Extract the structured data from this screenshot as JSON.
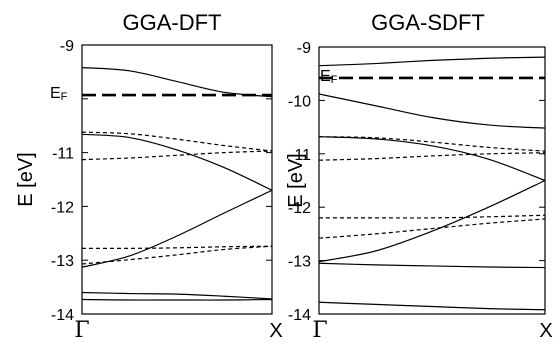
{
  "chart_data": [
    {
      "type": "line",
      "title": "GGA-DFT",
      "ylabel": "E [eV]",
      "ylim": [
        -14,
        -9
      ],
      "yticks": [
        "-9",
        "-10",
        "-11",
        "-12",
        "-13",
        "-14"
      ],
      "x_labels": [
        "Γ",
        "X"
      ],
      "fermi_label": {
        "main": "E",
        "sub": "F"
      },
      "fermi_level": -9.93,
      "grid": false,
      "series": [
        {
          "style": "solid",
          "x": [
            0,
            0.25,
            0.5,
            0.75,
            1
          ],
          "y": [
            -9.42,
            -9.48,
            -9.68,
            -9.88,
            -9.96
          ]
        },
        {
          "style": "solid",
          "x": [
            0,
            0.25,
            0.5,
            0.75,
            1
          ],
          "y": [
            -10.66,
            -10.72,
            -10.95,
            -11.28,
            -11.7
          ]
        },
        {
          "style": "solid",
          "x": [
            0,
            0.25,
            0.5,
            0.75,
            1
          ],
          "y": [
            -13.13,
            -12.92,
            -12.55,
            -12.12,
            -11.7
          ]
        },
        {
          "style": "solid",
          "x": [
            0,
            0.25,
            0.5,
            0.75,
            1
          ],
          "y": [
            -13.6,
            -13.62,
            -13.63,
            -13.67,
            -13.72
          ]
        },
        {
          "style": "solid",
          "x": [
            0,
            0.25,
            0.5,
            0.75,
            1
          ],
          "y": [
            -13.73,
            -13.74,
            -13.74,
            -13.74,
            -13.73
          ]
        },
        {
          "style": "dashed",
          "x": [
            0,
            0.25,
            0.5,
            0.75,
            1
          ],
          "y": [
            -10.62,
            -10.65,
            -10.75,
            -10.87,
            -10.97
          ]
        },
        {
          "style": "dashed",
          "x": [
            0,
            0.25,
            0.5,
            0.75,
            1
          ],
          "y": [
            -11.13,
            -11.1,
            -11.05,
            -11.0,
            -10.97
          ]
        },
        {
          "style": "dashed",
          "x": [
            0,
            0.25,
            0.5,
            0.75,
            1
          ],
          "y": [
            -12.78,
            -12.78,
            -12.77,
            -12.75,
            -12.74
          ]
        },
        {
          "style": "dashed",
          "x": [
            0,
            0.25,
            0.5,
            0.75,
            1
          ],
          "y": [
            -13.07,
            -12.99,
            -12.9,
            -12.8,
            -12.74
          ]
        }
      ]
    },
    {
      "type": "line",
      "title": "GGA-SDFT",
      "ylabel": "E [eV]",
      "ylim": [
        -14,
        -9
      ],
      "yticks": [
        "-9",
        "-10",
        "-11",
        "-12",
        "-13",
        "-14"
      ],
      "x_labels": [
        "Γ",
        "X"
      ],
      "fermi_label": {
        "main": "E",
        "sub": "F"
      },
      "fermi_level": -9.58,
      "grid": false,
      "series": [
        {
          "style": "solid",
          "x": [
            0,
            0.25,
            0.5,
            0.75,
            1
          ],
          "y": [
            -9.35,
            -9.31,
            -9.25,
            -9.21,
            -9.19
          ]
        },
        {
          "style": "solid",
          "x": [
            0,
            0.25,
            0.5,
            0.75,
            1
          ],
          "y": [
            -9.88,
            -10.1,
            -10.32,
            -10.46,
            -10.52
          ]
        },
        {
          "style": "solid",
          "x": [
            0,
            0.25,
            0.5,
            0.75,
            1
          ],
          "y": [
            -10.68,
            -10.72,
            -10.85,
            -11.1,
            -11.5
          ]
        },
        {
          "style": "solid",
          "x": [
            0,
            0.25,
            0.5,
            0.75,
            1
          ],
          "y": [
            -13.02,
            -12.82,
            -12.45,
            -12.0,
            -11.5
          ]
        },
        {
          "style": "solid",
          "x": [
            0,
            0.25,
            0.5,
            0.75,
            1
          ],
          "y": [
            -13.05,
            -13.08,
            -13.1,
            -13.12,
            -13.13
          ]
        },
        {
          "style": "solid",
          "x": [
            0,
            0.25,
            0.5,
            0.75,
            1
          ],
          "y": [
            -13.78,
            -13.82,
            -13.86,
            -13.9,
            -13.92
          ]
        },
        {
          "style": "dashed",
          "x": [
            0,
            0.25,
            0.5,
            0.75,
            1
          ],
          "y": [
            -10.68,
            -10.7,
            -10.78,
            -10.88,
            -10.95
          ]
        },
        {
          "style": "dashed",
          "x": [
            0,
            0.25,
            0.5,
            0.75,
            1
          ],
          "y": [
            -11.12,
            -11.09,
            -11.04,
            -11.0,
            -10.98
          ]
        },
        {
          "style": "dashed",
          "x": [
            0,
            0.25,
            0.5,
            0.75,
            1
          ],
          "y": [
            -12.2,
            -12.2,
            -12.2,
            -12.18,
            -12.15
          ]
        },
        {
          "style": "dashed",
          "x": [
            0,
            0.25,
            0.5,
            0.75,
            1
          ],
          "y": [
            -12.58,
            -12.5,
            -12.4,
            -12.3,
            -12.22
          ]
        }
      ]
    }
  ]
}
